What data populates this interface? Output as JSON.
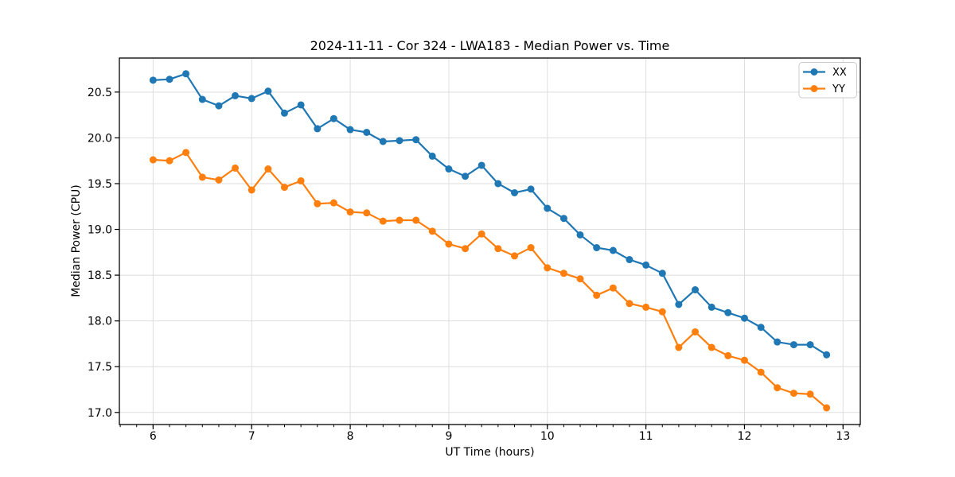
{
  "chart_data": {
    "type": "line",
    "title": "2024-11-11 - Cor 324 - LWA183 - Median Power vs. Time",
    "xlabel": "UT Time (hours)",
    "ylabel": "Median Power (CPU)",
    "x": [
      6.0,
      6.167,
      6.333,
      6.5,
      6.667,
      6.833,
      7.0,
      7.167,
      7.333,
      7.5,
      7.667,
      7.833,
      8.0,
      8.167,
      8.333,
      8.5,
      8.667,
      8.833,
      9.0,
      9.167,
      9.333,
      9.5,
      9.667,
      9.833,
      10.0,
      10.167,
      10.333,
      10.5,
      10.667,
      10.833,
      11.0,
      11.167,
      11.333,
      11.5,
      11.667,
      11.833,
      12.0,
      12.167,
      12.333,
      12.5,
      12.667,
      12.833
    ],
    "series": [
      {
        "name": "XX",
        "color": "#1f77b4",
        "values": [
          20.63,
          20.64,
          20.7,
          20.42,
          20.35,
          20.46,
          20.43,
          20.51,
          20.27,
          20.36,
          20.1,
          20.21,
          20.09,
          20.06,
          19.96,
          19.97,
          19.98,
          19.8,
          19.66,
          19.58,
          19.7,
          19.5,
          19.4,
          19.44,
          19.23,
          19.12,
          18.94,
          18.8,
          18.77,
          18.67,
          18.61,
          18.52,
          18.18,
          18.34,
          18.15,
          18.09,
          18.03,
          17.93,
          17.77,
          17.74,
          17.74,
          17.63
        ]
      },
      {
        "name": "YY",
        "color": "#ff7f0e",
        "values": [
          19.76,
          19.75,
          19.84,
          19.57,
          19.54,
          19.67,
          19.43,
          19.66,
          19.46,
          19.53,
          19.28,
          19.29,
          19.19,
          19.18,
          19.09,
          19.1,
          19.1,
          18.98,
          18.84,
          18.79,
          18.95,
          18.79,
          18.71,
          18.8,
          18.58,
          18.52,
          18.46,
          18.28,
          18.36,
          18.19,
          18.15,
          18.1,
          17.71,
          17.88,
          17.71,
          17.62,
          17.57,
          17.44,
          17.27,
          17.21,
          17.2,
          17.05
        ]
      }
    ],
    "xlim": [
      5.658,
      13.175
    ],
    "ylim": [
      16.868,
      20.872
    ],
    "xticks": [
      6,
      7,
      8,
      9,
      10,
      11,
      12,
      13
    ],
    "yticks": [
      17.0,
      17.5,
      18.0,
      18.5,
      19.0,
      19.5,
      20.0,
      20.5
    ],
    "x_minor_tick_step": 0.166667,
    "grid": true,
    "legend": {
      "position": "upper right",
      "entries": [
        "XX",
        "YY"
      ]
    }
  },
  "style_colors": {
    "grid": "#dedede",
    "spine": "#000000",
    "legend_border": "#cccccc",
    "legend_background": "#ffffff"
  }
}
